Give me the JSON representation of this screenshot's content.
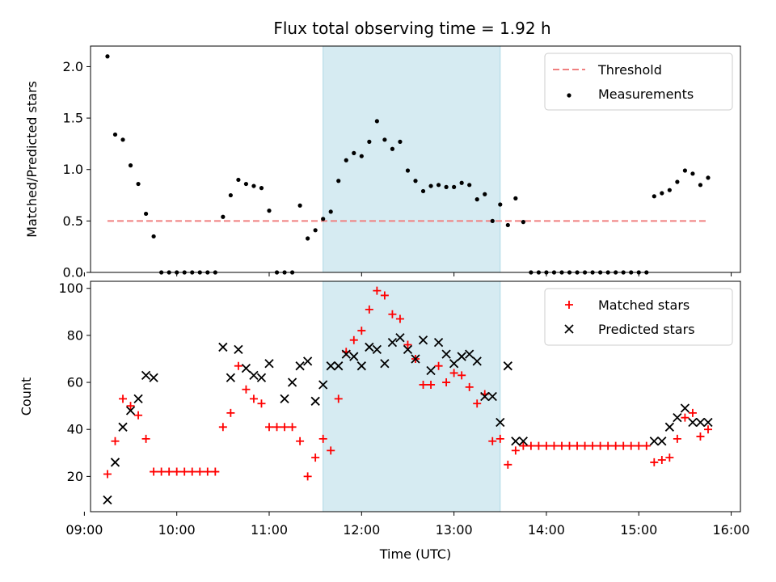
{
  "title": "Flux total observing time = 1.92 h",
  "colors": {
    "threshold": "#f08080",
    "measurement": "#000000",
    "matched": "#ff0000",
    "predicted": "#000000",
    "span": "#add8e6"
  },
  "chart_data": [
    {
      "type": "scatter",
      "ylabel": "Matched/Predicted stars",
      "ylim": [
        0,
        2.2
      ],
      "yticks": [
        0.0,
        0.5,
        1.0,
        1.5,
        2.0
      ],
      "yticklabels": [
        "0.0",
        "0.5",
        "1.0",
        "1.5",
        "2.0"
      ],
      "xlim": [
        "09:04",
        "16:06"
      ],
      "highlight_span": [
        "11:35",
        "13:30"
      ],
      "legend_position": "top-right",
      "threshold": {
        "name": "Threshold",
        "y": 0.5,
        "x_range": [
          "09:15",
          "15:45"
        ]
      },
      "series": [
        {
          "name": "Measurements",
          "marker": "dot",
          "x": [
            "09:15",
            "09:20",
            "09:25",
            "09:30",
            "09:35",
            "09:40",
            "09:45",
            "09:50",
            "09:55",
            "10:00",
            "10:05",
            "10:10",
            "10:15",
            "10:20",
            "10:25",
            "10:30",
            "10:35",
            "10:40",
            "10:45",
            "10:50",
            "10:55",
            "11:00",
            "11:05",
            "11:10",
            "11:15",
            "11:20",
            "11:25",
            "11:30",
            "11:35",
            "11:40",
            "11:45",
            "11:50",
            "11:55",
            "12:00",
            "12:05",
            "12:10",
            "12:15",
            "12:20",
            "12:25",
            "12:30",
            "12:35",
            "12:40",
            "12:45",
            "12:50",
            "12:55",
            "13:00",
            "13:05",
            "13:10",
            "13:15",
            "13:20",
            "13:25",
            "13:30",
            "13:35",
            "13:40",
            "13:45",
            "13:50",
            "13:55",
            "14:00",
            "14:05",
            "14:10",
            "14:15",
            "14:20",
            "14:25",
            "14:30",
            "14:35",
            "14:40",
            "14:45",
            "14:50",
            "14:55",
            "15:00",
            "15:05",
            "15:10",
            "15:15",
            "15:20",
            "15:25",
            "15:30",
            "15:35",
            "15:40",
            "15:45"
          ],
          "y": [
            2.1,
            1.34,
            1.29,
            1.04,
            0.86,
            0.57,
            0.35,
            0,
            0,
            0,
            0,
            0,
            0,
            0,
            0,
            0.54,
            0.75,
            0.9,
            0.86,
            0.84,
            0.82,
            0.6,
            0,
            0,
            0,
            0.65,
            0.33,
            0.41,
            0.52,
            0.59,
            0.89,
            1.09,
            1.16,
            1.13,
            1.27,
            1.47,
            1.29,
            1.2,
            1.27,
            0.99,
            0.89,
            0.79,
            0.84,
            0.85,
            0.83,
            0.83,
            0.87,
            0.85,
            0.71,
            0.76,
            0.5,
            0.66,
            0.46,
            0.72,
            0.49,
            0,
            0,
            0,
            0,
            0,
            0,
            0,
            0,
            0,
            0,
            0,
            0,
            0,
            0,
            0,
            0,
            0.74,
            0.77,
            0.8,
            0.88,
            0.99,
            0.96,
            0.85,
            0.92
          ]
        }
      ]
    },
    {
      "type": "scatter",
      "ylabel": "Count",
      "xlabel": "Time (UTC)",
      "ylim": [
        5,
        103
      ],
      "yticks": [
        20,
        40,
        60,
        80,
        100
      ],
      "yticklabels": [
        "20",
        "40",
        "60",
        "80",
        "100"
      ],
      "xlim": [
        "09:04",
        "16:06"
      ],
      "xticks": [
        "09:00",
        "10:00",
        "11:00",
        "12:00",
        "13:00",
        "14:00",
        "15:00",
        "16:00"
      ],
      "xticklabels": [
        "09:00",
        "10:00",
        "11:00",
        "12:00",
        "13:00",
        "14:00",
        "15:00",
        "16:00"
      ],
      "highlight_span": [
        "11:35",
        "13:30"
      ],
      "legend_position": "top-right",
      "series": [
        {
          "name": "Matched stars",
          "marker": "plus",
          "x": [
            "09:15",
            "09:20",
            "09:25",
            "09:30",
            "09:35",
            "09:40",
            "09:45",
            "09:50",
            "09:55",
            "10:00",
            "10:05",
            "10:10",
            "10:15",
            "10:20",
            "10:25",
            "10:30",
            "10:35",
            "10:40",
            "10:45",
            "10:50",
            "10:55",
            "11:00",
            "11:05",
            "11:10",
            "11:15",
            "11:20",
            "11:25",
            "11:30",
            "11:35",
            "11:40",
            "11:45",
            "11:50",
            "11:55",
            "12:00",
            "12:05",
            "12:10",
            "12:15",
            "12:20",
            "12:25",
            "12:30",
            "12:35",
            "12:40",
            "12:45",
            "12:50",
            "12:55",
            "13:00",
            "13:05",
            "13:10",
            "13:15",
            "13:20",
            "13:25",
            "13:30",
            "13:35",
            "13:40",
            "13:45",
            "13:50",
            "13:55",
            "14:00",
            "14:05",
            "14:10",
            "14:15",
            "14:20",
            "14:25",
            "14:30",
            "14:35",
            "14:40",
            "14:45",
            "14:50",
            "14:55",
            "15:00",
            "15:05",
            "15:10",
            "15:15",
            "15:20",
            "15:25",
            "15:30",
            "15:35",
            "15:40",
            "15:45"
          ],
          "y": [
            21,
            35,
            53,
            50,
            46,
            36,
            22,
            22,
            22,
            22,
            22,
            22,
            22,
            22,
            22,
            41,
            47,
            67,
            57,
            53,
            51,
            41,
            41,
            41,
            41,
            35,
            20,
            28,
            36,
            31,
            53,
            73,
            78,
            82,
            91,
            99,
            97,
            89,
            87,
            76,
            70,
            59,
            59,
            67,
            60,
            64,
            63,
            58,
            51,
            55,
            35,
            36,
            25,
            31,
            33,
            33,
            33,
            33,
            33,
            33,
            33,
            33,
            33,
            33,
            33,
            33,
            33,
            33,
            33,
            33,
            33,
            26,
            27,
            28,
            36,
            45,
            47,
            37,
            40
          ]
        },
        {
          "name": "Predicted stars",
          "marker": "x",
          "x": [
            "09:15",
            "09:20",
            "09:25",
            "09:30",
            "09:35",
            "09:40",
            "09:45",
            "10:30",
            "10:35",
            "10:40",
            "10:45",
            "10:50",
            "10:55",
            "11:00",
            "11:10",
            "11:15",
            "11:20",
            "11:25",
            "11:30",
            "11:35",
            "11:40",
            "11:45",
            "11:50",
            "11:55",
            "12:00",
            "12:05",
            "12:10",
            "12:15",
            "12:20",
            "12:25",
            "12:30",
            "12:35",
            "12:40",
            "12:45",
            "12:50",
            "12:55",
            "13:00",
            "13:05",
            "13:10",
            "13:15",
            "13:20",
            "13:25",
            "13:30",
            "13:35",
            "13:40",
            "13:45",
            "15:10",
            "15:15",
            "15:20",
            "15:25",
            "15:30",
            "15:35",
            "15:40",
            "15:45"
          ],
          "y": [
            10,
            26,
            41,
            48,
            53,
            63,
            62,
            75,
            62,
            74,
            66,
            63,
            62,
            68,
            53,
            60,
            67,
            69,
            52,
            59,
            67,
            67,
            72,
            71,
            67,
            75,
            74,
            68,
            77,
            79,
            74,
            70,
            78,
            65,
            77,
            72,
            68,
            71,
            72,
            69,
            54,
            54,
            43,
            67,
            35,
            35,
            35,
            35,
            41,
            45,
            49,
            43,
            43,
            43
          ]
        }
      ]
    }
  ]
}
